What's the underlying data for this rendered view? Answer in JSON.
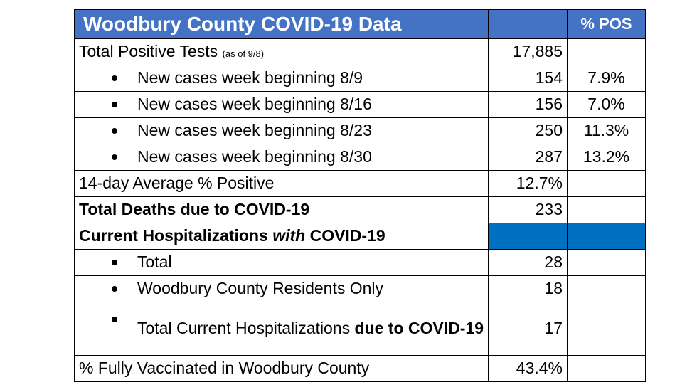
{
  "header": {
    "title": "Woodbury County COVID-19 Data",
    "blank": "",
    "pos_label": "% POS"
  },
  "total_positive": {
    "label": "Total Positive Tests",
    "note": "(as of 9/8)",
    "value": "17,885"
  },
  "weekly": [
    {
      "label": "New cases week beginning 8/9",
      "value": "154",
      "pos": "7.9%"
    },
    {
      "label": "New cases week beginning 8/16",
      "value": "156",
      "pos": "7.0%"
    },
    {
      "label": "New cases week beginning 8/23",
      "value": "250",
      "pos": "11.3%"
    },
    {
      "label": "New cases week beginning 8/30",
      "value": "287",
      "pos": "13.2%"
    }
  ],
  "avg_positive": {
    "label": "14-day Average % Positive",
    "value": "12.7%"
  },
  "deaths": {
    "label": "Total Deaths due to COVID-19",
    "value": "233"
  },
  "hosp_header": {
    "label_pre": "Current Hospitalizations ",
    "label_em": "with",
    "label_post": " COVID-19"
  },
  "hosp": {
    "total": {
      "label": "Total",
      "value": "28"
    },
    "residents": {
      "label": "Woodbury County Residents Only",
      "value": "18"
    },
    "due_to": {
      "label_pre": "Total Current Hospitalizations ",
      "label_bold": "due to COVID-19",
      "value": "17"
    }
  },
  "vaccinated": {
    "label": "% Fully Vaccinated in Woodbury County",
    "value": "43.4%"
  },
  "colors": {
    "header_bg": "#4472C4",
    "highlight_bg": "#0070C0"
  }
}
